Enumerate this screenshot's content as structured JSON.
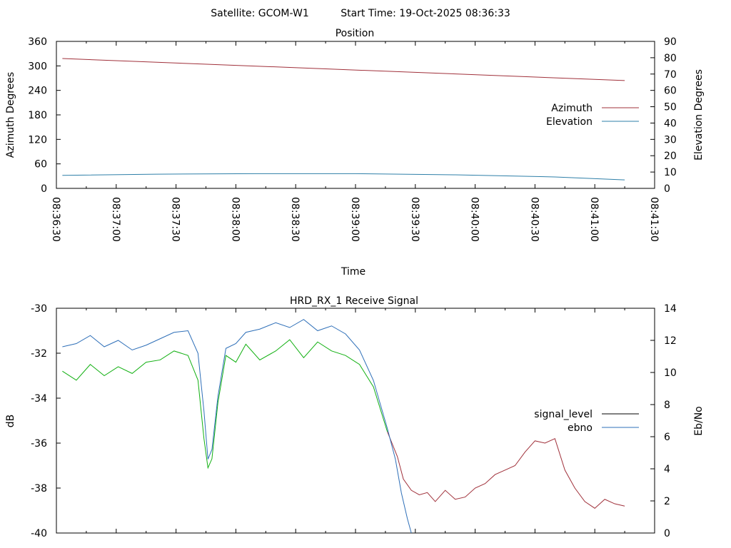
{
  "header": {
    "satellite_text": "Satellite: GCOM-W1",
    "start_time_text": "Start Time: 19-Oct-2025 08:36:33"
  },
  "colors": {
    "azimuth": "#a0303a",
    "elevation": "#2e7fa8",
    "signal_level_trace": "#a0303a",
    "signal_level_legend": "#000000",
    "ebno": "#2e6fb8",
    "green_trace": "#12b012",
    "axis": "#000000"
  },
  "chart_data": [
    {
      "type": "line",
      "title": "Position",
      "xlabel": "Time",
      "ylabel": "Azimuth Degrees",
      "y2label": "Elevation Degrees",
      "x_tick_labels": [
        "08:36:30",
        "08:37:00",
        "08:37:30",
        "08:38:00",
        "08:38:30",
        "08:39:00",
        "08:39:30",
        "08:40:00",
        "08:40:30",
        "08:41:00",
        "08:41:30"
      ],
      "xlim_seconds": [
        0,
        300
      ],
      "ylim": [
        0,
        360
      ],
      "y_ticks": [
        0,
        60,
        120,
        180,
        240,
        300,
        360
      ],
      "y2lim": [
        0,
        90
      ],
      "y2_ticks": [
        0,
        10,
        20,
        30,
        40,
        50,
        60,
        70,
        80,
        90
      ],
      "legend_position": "right-center",
      "series": [
        {
          "name": "Azimuth",
          "axis": "left",
          "x": [
            3,
            285
          ],
          "values": [
            318,
            264
          ]
        },
        {
          "name": "Elevation",
          "axis": "right",
          "x": [
            3,
            50,
            100,
            150,
            200,
            250,
            285
          ],
          "values": [
            8,
            8.7,
            9,
            9,
            8.3,
            7,
            5.2
          ]
        }
      ]
    },
    {
      "type": "line",
      "title": "HRD_RX_1 Receive Signal",
      "ylabel": "dB",
      "y2label": "Eb/No",
      "ylim": [
        -40,
        -30
      ],
      "y_ticks": [
        -40,
        -38,
        -36,
        -34,
        -32,
        -30
      ],
      "y2lim": [
        0,
        14
      ],
      "y2_ticks": [
        0,
        2,
        4,
        6,
        8,
        10,
        12,
        14
      ],
      "xlim_seconds": [
        0,
        300
      ],
      "legend_position": "right-center",
      "series": [
        {
          "name": "signal_level",
          "axis": "left",
          "x": [
            3,
            10,
            17,
            24,
            31,
            38,
            45,
            52,
            59,
            66,
            71,
            74,
            76,
            78,
            81,
            85,
            90,
            95,
            102,
            110,
            117,
            124,
            131,
            138,
            145,
            152,
            159,
            166,
            171,
            174,
            178,
            182,
            186,
            190,
            195,
            200,
            205,
            210,
            215,
            220,
            225,
            230,
            235,
            240,
            245,
            250,
            255,
            260,
            265,
            270,
            275,
            280,
            285
          ],
          "values": [
            -32.8,
            -33.2,
            -32.5,
            -33.0,
            -32.6,
            -32.9,
            -32.4,
            -32.3,
            -31.9,
            -32.1,
            -33.2,
            -35.8,
            -37.1,
            -36.7,
            -34.2,
            -32.1,
            -32.4,
            -31.6,
            -32.3,
            -31.9,
            -31.4,
            -32.2,
            -31.5,
            -31.9,
            -32.1,
            -32.5,
            -33.5,
            -35.5,
            -36.6,
            -37.6,
            -38.1,
            -38.3,
            -38.2,
            -38.6,
            -38.1,
            -38.5,
            -38.4,
            -38.0,
            -37.8,
            -37.4,
            -37.2,
            -37.0,
            -36.4,
            -35.9,
            -36.0,
            -35.8,
            -37.2,
            -38.0,
            -38.6,
            -38.9,
            -38.5,
            -38.7,
            -38.8
          ]
        },
        {
          "name": "ebno",
          "axis": "right",
          "x": [
            3,
            10,
            17,
            24,
            31,
            38,
            45,
            52,
            59,
            66,
            71,
            74,
            76,
            78,
            81,
            85,
            90,
            95,
            102,
            110,
            117,
            124,
            131,
            138,
            145,
            152,
            159,
            166,
            170,
            173,
            176,
            178
          ],
          "values": [
            11.6,
            11.8,
            12.3,
            11.6,
            12.0,
            11.4,
            11.7,
            12.1,
            12.5,
            12.6,
            11.2,
            7.6,
            4.6,
            5.2,
            8.5,
            11.5,
            11.8,
            12.5,
            12.7,
            13.1,
            12.8,
            13.3,
            12.6,
            12.9,
            12.4,
            11.4,
            9.5,
            6.5,
            4.6,
            2.5,
            0.9,
            0.0
          ]
        }
      ]
    }
  ]
}
